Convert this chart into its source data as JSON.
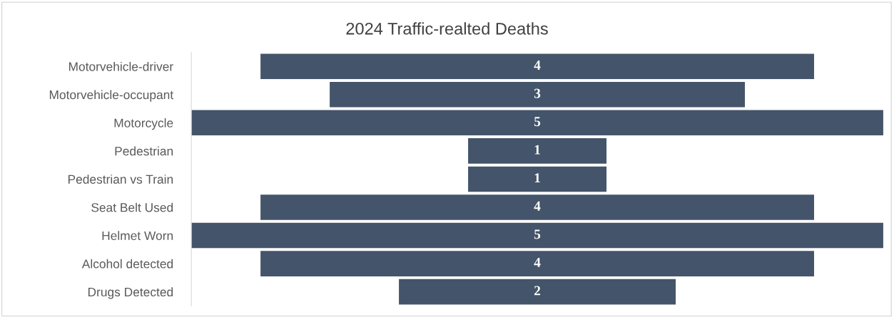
{
  "chart_data": {
    "type": "other",
    "title": "2024 Traffic-realted Deaths",
    "categories": [
      "Motorvehicle-driver",
      "Motorvehicle-occupant",
      "Motorcycle",
      "Pedestrian",
      "Pedestrian vs Train",
      "Seat Belt Used",
      "Helmet Worn",
      "Alcohol detected",
      "Drugs Detected"
    ],
    "values": [
      4,
      3,
      5,
      1,
      1,
      4,
      5,
      4,
      2
    ],
    "color": "#44546a",
    "data_labels": true
  }
}
